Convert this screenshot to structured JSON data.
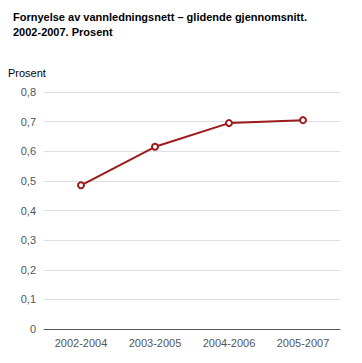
{
  "chart_data": {
    "type": "line",
    "title": "Fornyelse av vannledningsnett – glidende gjennomsnitt.",
    "subtitle": "2002-2007. Prosent",
    "ylabel": "Prosent",
    "categories": [
      "2002-2004",
      "2003-2005",
      "2004-2006",
      "2005-2007"
    ],
    "values": [
      0.485,
      0.615,
      0.695,
      0.705
    ],
    "color": "#9b1a1a",
    "ylim": [
      0,
      0.8
    ],
    "yticks": [
      0,
      {
        "value": 0.1,
        "label": "0,1"
      },
      {
        "value": 0.2,
        "label": "0,2"
      },
      {
        "value": 0.3,
        "label": "0,3"
      },
      {
        "value": 0.4,
        "label": "0,4"
      },
      {
        "value": 0.5,
        "label": "0,5"
      },
      {
        "value": 0.6,
        "label": "0,6"
      },
      {
        "value": 0.7,
        "label": "0,7"
      },
      {
        "value": 0.8,
        "label": "0,8"
      }
    ],
    "grid": true
  }
}
